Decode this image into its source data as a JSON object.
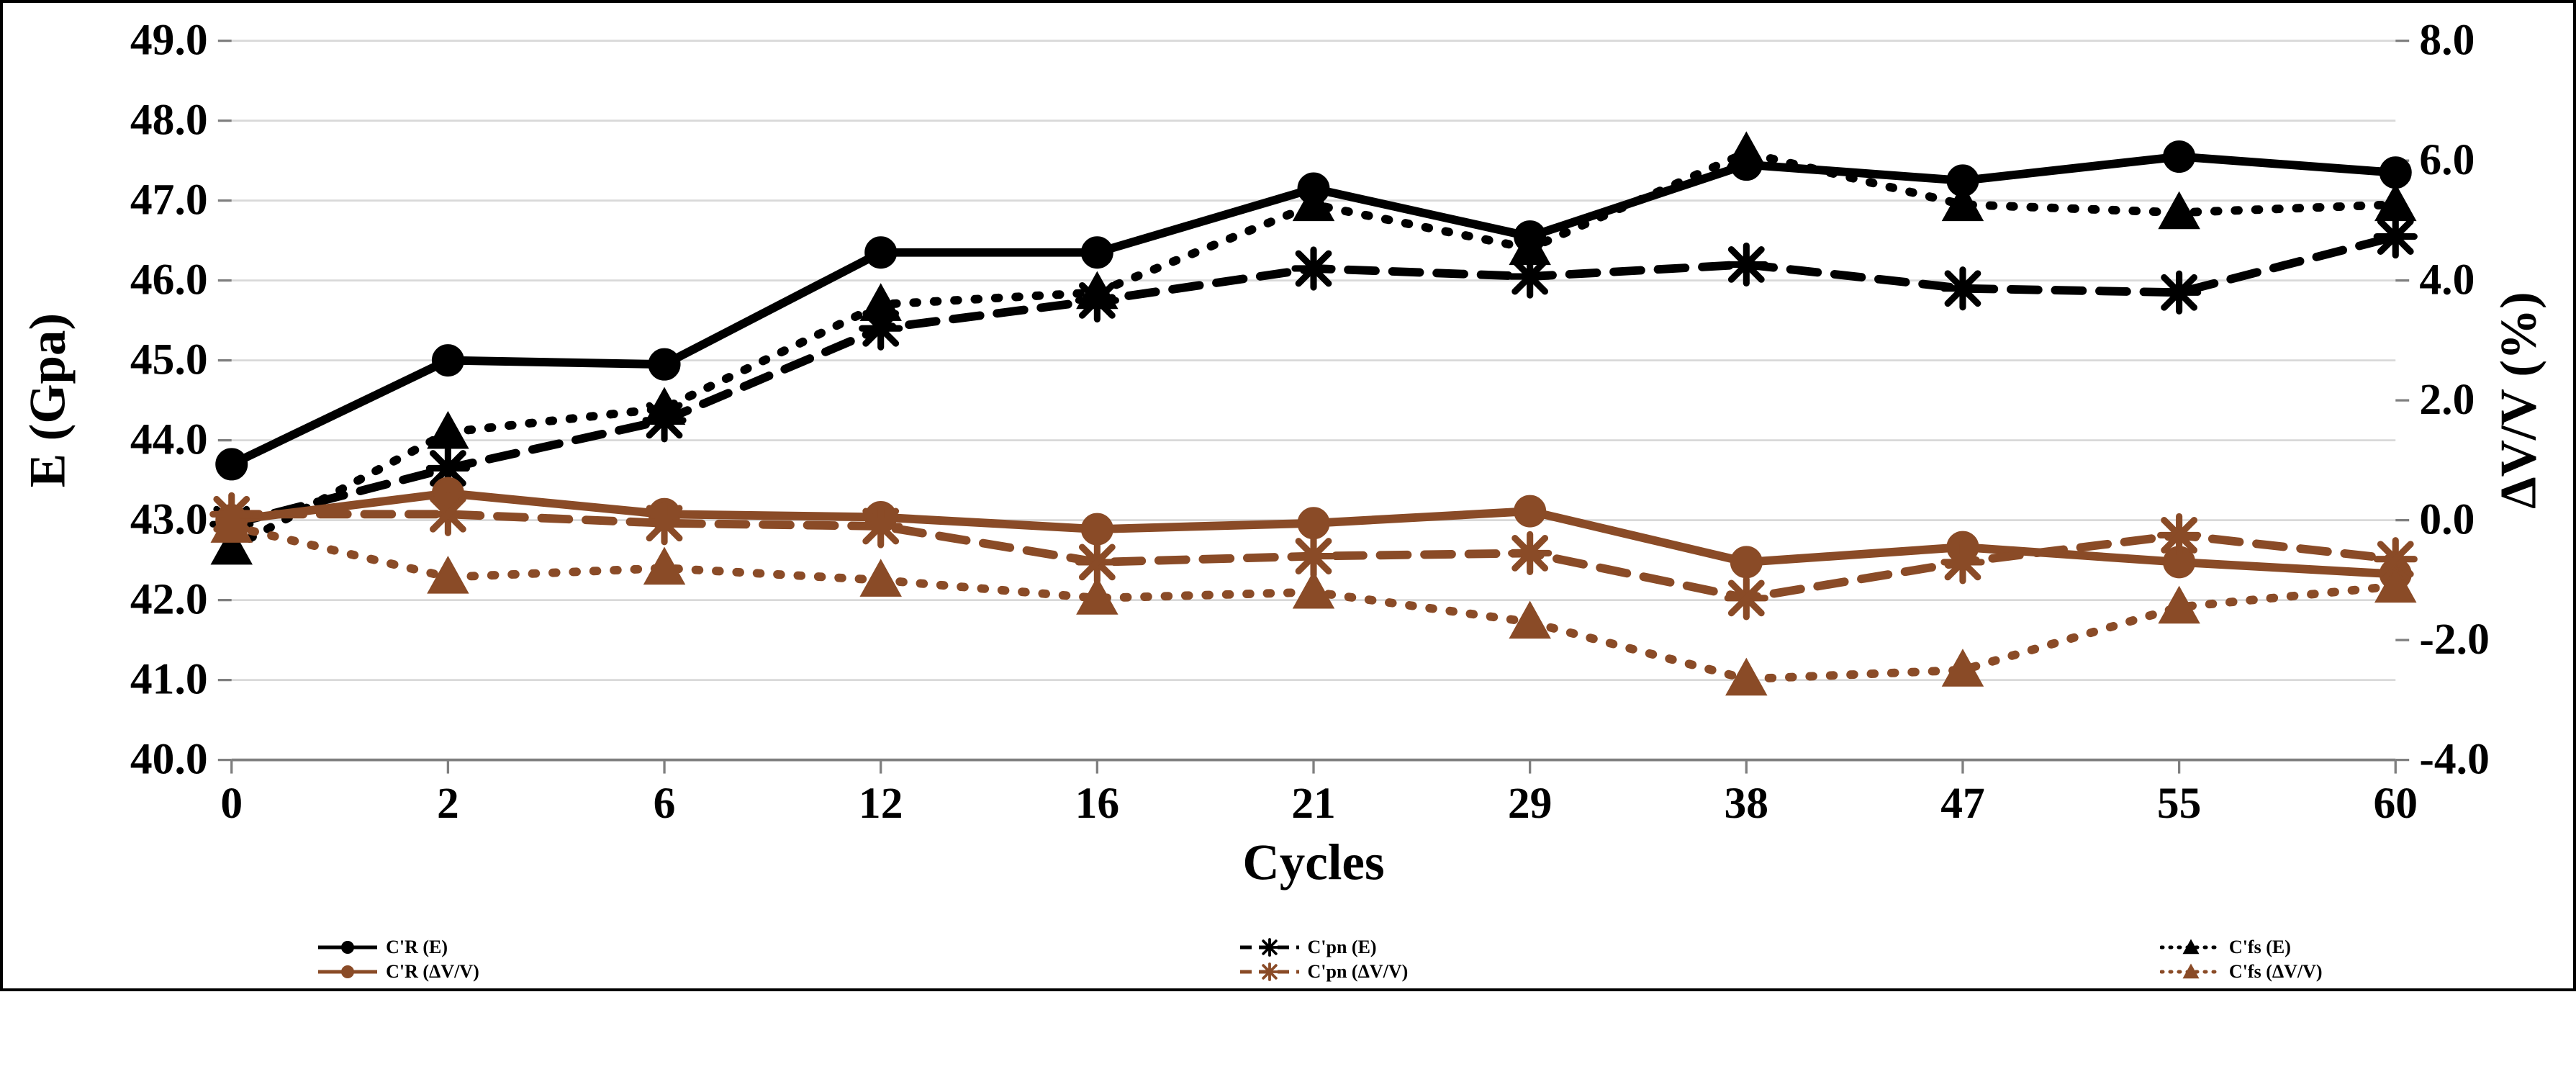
{
  "chart": {
    "type": "dual-axis-line",
    "background_color": "#ffffff",
    "border_color": "#000000",
    "grid_color": "#d9d9d9",
    "tick_font_size": 26,
    "axis_title_font_size": 30,
    "legend_font_size": 26,
    "x": {
      "title": "Cycles",
      "categories": [
        "0",
        "2",
        "6",
        "12",
        "16",
        "21",
        "29",
        "38",
        "47",
        "55",
        "60"
      ]
    },
    "y_left": {
      "title": "E (Gpa)",
      "min": 40.0,
      "max": 49.0,
      "step": 1.0,
      "ticks": [
        "40.0",
        "41.0",
        "42.0",
        "43.0",
        "44.0",
        "45.0",
        "46.0",
        "47.0",
        "48.0",
        "49.0"
      ]
    },
    "y_right": {
      "title": "ΔV/V (%)",
      "min": -4.0,
      "max": 8.0,
      "step": 2.0,
      "ticks": [
        "-4.0",
        "-2.0",
        "0.0",
        "2.0",
        "4.0",
        "6.0",
        "8.0"
      ]
    },
    "series": [
      {
        "id": "cr_e",
        "legend": "C'R (E)",
        "axis": "left",
        "color": "#000000",
        "line_width": 5,
        "dash": "solid",
        "marker": "circle",
        "marker_size": 9,
        "values": [
          43.7,
          45.0,
          44.95,
          46.35,
          46.35,
          47.15,
          46.55,
          47.45,
          47.25,
          47.55,
          47.35
        ]
      },
      {
        "id": "cpn_e",
        "legend": "C'pn (E)",
        "axis": "left",
        "color": "#000000",
        "line_width": 5,
        "dash": "dashed",
        "marker": "asterisk",
        "marker_size": 11,
        "values": [
          42.95,
          43.65,
          44.25,
          45.4,
          45.75,
          46.15,
          46.05,
          46.2,
          45.9,
          45.85,
          46.55
        ]
      },
      {
        "id": "cfs_e",
        "legend": "C'fs (E)",
        "axis": "left",
        "color": "#000000",
        "line_width": 5,
        "dash": "dotted",
        "marker": "triangle",
        "marker_size": 10,
        "values": [
          42.65,
          44.1,
          44.4,
          45.7,
          45.85,
          46.95,
          46.4,
          47.6,
          46.95,
          46.85,
          46.95
        ]
      },
      {
        "id": "cr_dv",
        "legend": "C'R (ΔV/V)",
        "axis": "right",
        "color": "#8a4b27",
        "line_width": 5,
        "dash": "solid",
        "marker": "circle",
        "marker_size": 9,
        "values": [
          0.0,
          0.45,
          0.1,
          0.05,
          -0.15,
          -0.05,
          0.15,
          -0.7,
          -0.45,
          -0.7,
          -0.9
        ]
      },
      {
        "id": "cpn_dv",
        "legend": "C'pn (ΔV/V)",
        "axis": "right",
        "color": "#8a4b27",
        "line_width": 5,
        "dash": "dashed",
        "marker": "asterisk",
        "marker_size": 11,
        "values": [
          0.1,
          0.1,
          -0.05,
          -0.1,
          -0.7,
          -0.6,
          -0.55,
          -1.3,
          -0.7,
          -0.25,
          -0.65
        ]
      },
      {
        "id": "cfs_dv",
        "legend": "C'fs (ΔV/V)",
        "axis": "right",
        "color": "#8a4b27",
        "line_width": 5,
        "dash": "dotted",
        "marker": "triangle",
        "marker_size": 10,
        "values": [
          -0.1,
          -0.95,
          -0.8,
          -1.0,
          -1.3,
          -1.2,
          -1.7,
          -2.65,
          -2.5,
          -1.45,
          -1.1
        ]
      }
    ]
  }
}
